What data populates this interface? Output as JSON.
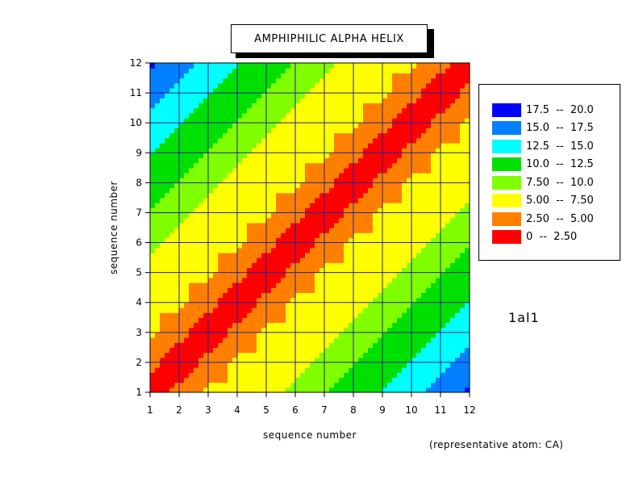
{
  "chart_data": {
    "type": "heatmap",
    "subtype": "contour",
    "title": "AMPHIPHILIC ALPHA HELIX",
    "xlabel": "sequence number",
    "ylabel": "sequence number",
    "x": [
      1,
      2,
      3,
      4,
      5,
      6,
      7,
      8,
      9,
      10,
      11,
      12
    ],
    "y": [
      1,
      2,
      3,
      4,
      5,
      6,
      7,
      8,
      9,
      10,
      11,
      12
    ],
    "xlim": [
      1,
      12
    ],
    "ylim": [
      1,
      12
    ],
    "grid": true,
    "legend_position": "right",
    "levels": [
      {
        "label": "17.5  --  20.0",
        "min": 17.5,
        "max": 20.0,
        "color": "#0000ff"
      },
      {
        "label": "15.0  --  17.5",
        "min": 15.0,
        "max": 17.5,
        "color": "#0080ff"
      },
      {
        "label": "12.5  --  15.0",
        "min": 12.5,
        "max": 15.0,
        "color": "#00ffff"
      },
      {
        "label": "10.0  --  12.5",
        "min": 10.0,
        "max": 12.5,
        "color": "#00e000"
      },
      {
        "label": "7.50  --  10.0",
        "min": 7.5,
        "max": 10.0,
        "color": "#80ff00"
      },
      {
        "label": "5.00  --  7.50",
        "min": 5.0,
        "max": 7.5,
        "color": "#ffff00"
      },
      {
        "label": "2.50  --  5.00",
        "min": 2.5,
        "max": 5.0,
        "color": "#ff8000"
      },
      {
        "label": "0  --  2.50",
        "min": 0,
        "max": 2.5,
        "color": "#ff0000"
      }
    ],
    "values": [
      [
        0.0,
        3.8,
        5.4,
        5.0,
        6.2,
        8.6,
        9.9,
        10.9,
        12.6,
        14.5,
        15.8,
        18.0
      ],
      [
        3.8,
        0.0,
        3.8,
        5.4,
        5.0,
        6.2,
        8.6,
        9.9,
        10.9,
        12.6,
        14.5,
        15.8
      ],
      [
        5.4,
        3.8,
        0.0,
        3.8,
        5.4,
        5.0,
        6.2,
        8.6,
        9.9,
        10.9,
        12.6,
        14.5
      ],
      [
        5.0,
        5.4,
        3.8,
        0.0,
        3.8,
        5.4,
        5.0,
        6.2,
        8.6,
        9.9,
        10.9,
        12.6
      ],
      [
        6.2,
        5.0,
        5.4,
        3.8,
        0.0,
        3.8,
        5.4,
        5.0,
        6.2,
        8.6,
        9.9,
        10.9
      ],
      [
        8.6,
        6.2,
        5.0,
        5.4,
        3.8,
        0.0,
        3.8,
        5.4,
        5.0,
        6.2,
        8.6,
        9.9
      ],
      [
        9.9,
        8.6,
        6.2,
        5.0,
        5.4,
        3.8,
        0.0,
        3.8,
        5.4,
        5.0,
        6.2,
        8.6
      ],
      [
        10.9,
        9.9,
        8.6,
        6.2,
        5.0,
        5.4,
        3.8,
        0.0,
        3.8,
        5.4,
        5.0,
        6.2
      ],
      [
        12.6,
        10.9,
        9.9,
        8.6,
        6.2,
        5.0,
        5.4,
        3.8,
        0.0,
        3.8,
        5.4,
        5.0
      ],
      [
        14.5,
        12.6,
        10.9,
        9.9,
        8.6,
        6.2,
        5.0,
        5.4,
        3.8,
        0.0,
        3.8,
        5.4
      ],
      [
        15.8,
        14.5,
        12.6,
        10.9,
        9.9,
        8.6,
        6.2,
        5.0,
        5.4,
        3.8,
        0.0,
        3.8
      ],
      [
        18.0,
        15.8,
        14.5,
        12.6,
        10.9,
        9.9,
        8.6,
        6.2,
        5.0,
        5.4,
        3.8,
        0.0
      ]
    ]
  },
  "annotations": {
    "protein_id": "1al1",
    "note": "(representative atom: CA)"
  }
}
